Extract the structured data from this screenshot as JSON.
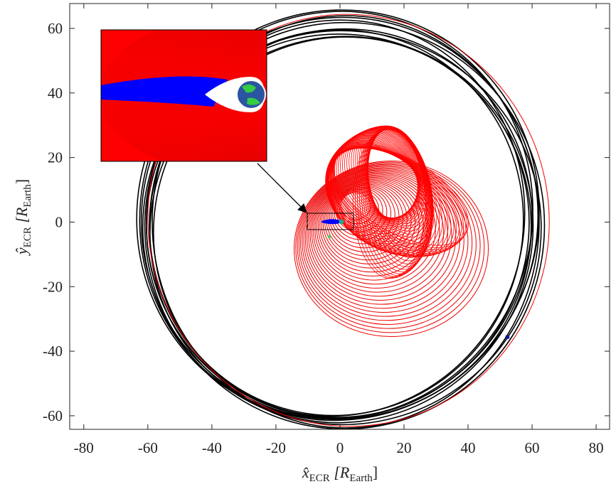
{
  "chart_data": {
    "type": "scatter",
    "x_label_parts": [
      "x̂",
      "ECR",
      " [R",
      "Earth",
      "]"
    ],
    "y_label_parts": [
      "ŷ",
      "ECR",
      " [R",
      "Earth",
      "]"
    ],
    "xlim": [
      -84.4,
      84.2
    ],
    "ylim": [
      -64.2,
      67.7
    ],
    "xticks": [
      -80,
      -60,
      -40,
      -20,
      0,
      20,
      40,
      60,
      80
    ],
    "yticks": [
      -60,
      -40,
      -20,
      0,
      20,
      40,
      60
    ],
    "series": [
      {
        "color": "#0a1a8c",
        "x": [
          52.3
        ],
        "y": [
          -35.6
        ]
      }
    ]
  }
}
